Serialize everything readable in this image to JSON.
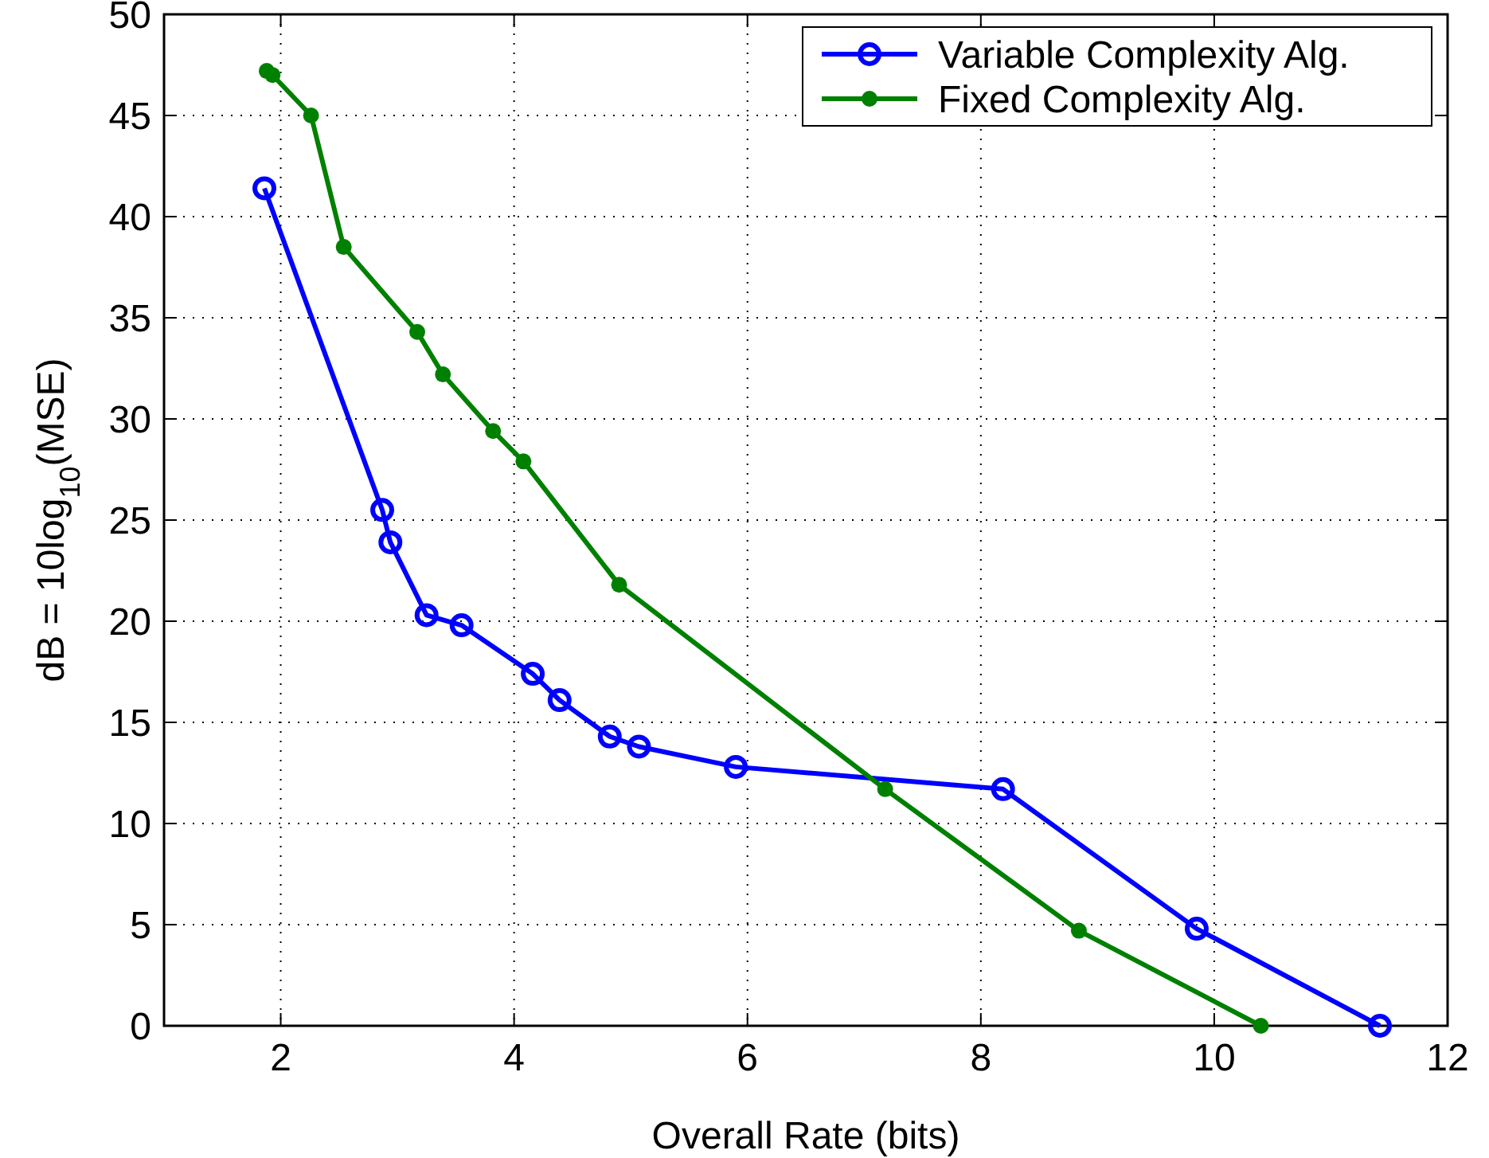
{
  "chart_data": {
    "type": "line",
    "xlabel": "Overall Rate (bits)",
    "ylabel": "dB = 10log$_{10}$(MSE)",
    "xlim": [
      1,
      12
    ],
    "ylim": [
      0,
      50
    ],
    "xticks": [
      2,
      4,
      6,
      8,
      10,
      12
    ],
    "yticks": [
      0,
      5,
      10,
      15,
      20,
      25,
      30,
      35,
      40,
      45,
      50
    ],
    "grid": true,
    "legend": "top right",
    "line_style": "solid",
    "series": [
      {
        "name": "Variable Complexity Alg.",
        "color": "#0000ff",
        "marker": "circle",
        "x": [
          1.86,
          2.87,
          2.94,
          3.25,
          3.55,
          4.16,
          4.39,
          4.82,
          5.07,
          5.9,
          8.19,
          9.85,
          11.42
        ],
        "values": [
          41.4,
          25.5,
          23.9,
          20.3,
          19.8,
          17.4,
          16.1,
          14.3,
          13.8,
          12.8,
          11.7,
          4.8,
          0
        ]
      },
      {
        "name": "Fixed Complexity Alg.",
        "color": "#008000",
        "marker": "dot",
        "x": [
          1.88,
          1.93,
          2.26,
          2.54,
          3.17,
          3.39,
          3.82,
          4.08,
          4.9,
          7.18,
          8.84,
          10.4
        ],
        "values": [
          47.2,
          47.0,
          45.0,
          38.5,
          34.3,
          32.2,
          29.4,
          27.9,
          21.8,
          11.7,
          4.7,
          0
        ]
      }
    ]
  }
}
